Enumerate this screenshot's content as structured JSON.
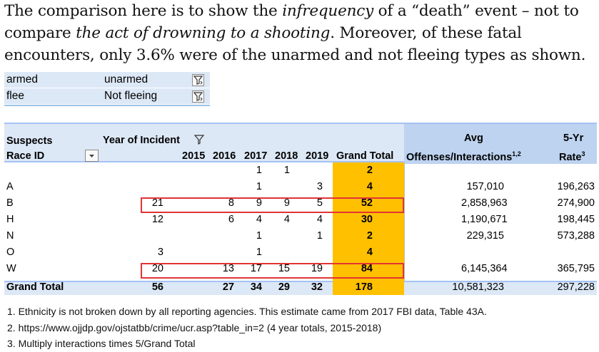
{
  "paragraph": {
    "p1": "The comparison here is to show the ",
    "p2": "infrequency",
    "p3": " of a “death” event – not to compare ",
    "p4": "the act of drowning to a shooting",
    "p5": ". Moreover, of these fatal encounters, only 3.6% were of the unarmed and not fleeing types as shown."
  },
  "filters": [
    {
      "key": "armed",
      "value": "unarmed"
    },
    {
      "key": "flee",
      "value": "Not fleeing"
    }
  ],
  "pivot": {
    "header": {
      "suspects": "Suspects",
      "race_id": "Race ID",
      "year_of_incident": "Year of Incident",
      "years": [
        "2015",
        "2016",
        "2017",
        "2018",
        "2019"
      ],
      "grand_total": "Grand Total",
      "avg_top": "Avg",
      "avg_bottom": "Offenses/Interactions",
      "avg_sup": "1,2",
      "rate_top": "5-Yr",
      "rate_bottom": "Rate",
      "rate_sup": "3"
    },
    "rows": [
      {
        "race": "",
        "y2015": "",
        "y2016": "",
        "y2017": "1",
        "y2018": "1",
        "y2019": "",
        "total": "2",
        "avg": "",
        "rate": ""
      },
      {
        "race": "A",
        "y2015": "",
        "y2016": "",
        "y2017": "1",
        "y2018": "",
        "y2019": "3",
        "total": "4",
        "avg": "157,010",
        "rate": "196,263"
      },
      {
        "race": "B",
        "y2015": "21",
        "y2016": "8",
        "y2017": "9",
        "y2018": "9",
        "y2019": "5",
        "total": "52",
        "avg": "2,858,963",
        "rate": "274,900"
      },
      {
        "race": "H",
        "y2015": "12",
        "y2016": "6",
        "y2017": "4",
        "y2018": "4",
        "y2019": "4",
        "total": "30",
        "avg": "1,190,671",
        "rate": "198,445"
      },
      {
        "race": "N",
        "y2015": "",
        "y2016": "",
        "y2017": "1",
        "y2018": "",
        "y2019": "1",
        "total": "2",
        "avg": "229,315",
        "rate": "573,288"
      },
      {
        "race": "O",
        "y2015": "3",
        "y2016": "",
        "y2017": "1",
        "y2018": "",
        "y2019": "",
        "total": "4",
        "avg": "",
        "rate": ""
      },
      {
        "race": "W",
        "y2015": "20",
        "y2016": "13",
        "y2017": "17",
        "y2018": "15",
        "y2019": "19",
        "total": "84",
        "avg": "6,145,364",
        "rate": "365,795"
      }
    ],
    "grand_total_row": {
      "label": "Grand Total",
      "y2015": "56",
      "y2016": "27",
      "y2017": "34",
      "y2018": "29",
      "y2019": "32",
      "total": "178",
      "avg": "10,581,323",
      "rate": "297,228"
    }
  },
  "footnotes": [
    "1. Ethnicity is not broken down by all reporting agencies. This estimate came from 2017 FBI data, Table 43A.",
    "2. https://www.ojjdp.gov/ojstatbb/crime/ucr.asp?table_in=2 (4 year totals, 2015-2018)",
    "3. Multiply interactions times 5/Grand Total"
  ],
  "icons": {
    "filter_button": "filter-funnel-icon",
    "dropdown": "dropdown-arrow-icon"
  },
  "colors": {
    "header_blue": "#dde8f6",
    "grand_total_gold": "#ffc000",
    "highlight_red": "#e23434"
  }
}
